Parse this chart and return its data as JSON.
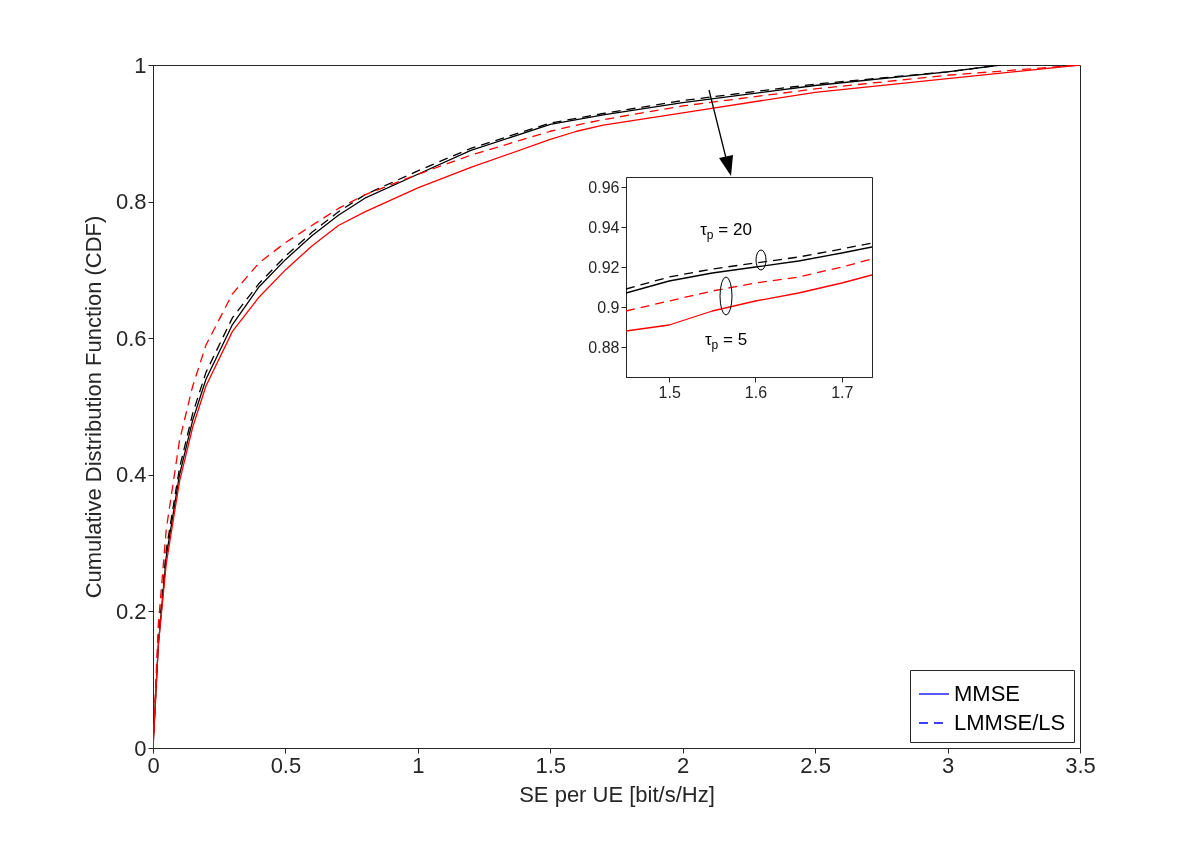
{
  "chart_data": [
    {
      "type": "line",
      "xlabel": "SE per UE [bit/s/Hz]",
      "ylabel": "Cumulative Distribution Function (CDF)",
      "xlim": [
        0,
        3.5
      ],
      "ylim": [
        0,
        1
      ],
      "xticks": [
        0,
        0.5,
        1,
        1.5,
        2,
        2.5,
        3,
        3.5
      ],
      "yticks": [
        0,
        0.2,
        0.4,
        0.6,
        0.8,
        1
      ],
      "legend": "bottom right",
      "series": [
        {
          "color": "#000000",
          "line_style": "solid",
          "x": [
            0,
            0.02,
            0.05,
            0.1,
            0.15,
            0.2,
            0.3,
            0.4,
            0.5,
            0.6,
            0.7,
            0.8,
            1.0,
            1.2,
            1.5,
            1.6,
            1.7,
            2.0,
            2.5,
            3.0,
            3.2
          ],
          "values": [
            0,
            0.15,
            0.28,
            0.4,
            0.48,
            0.54,
            0.62,
            0.675,
            0.715,
            0.75,
            0.78,
            0.805,
            0.84,
            0.875,
            0.913,
            0.92,
            0.927,
            0.945,
            0.97,
            0.99,
            1.0
          ]
        },
        {
          "color": "#000000",
          "line_style": "dashed",
          "x": [
            0,
            0.02,
            0.05,
            0.1,
            0.15,
            0.2,
            0.3,
            0.4,
            0.5,
            0.6,
            0.7,
            0.8,
            1.0,
            1.2,
            1.5,
            1.6,
            1.7,
            2.0,
            2.5,
            3.0,
            3.2
          ],
          "values": [
            0,
            0.16,
            0.29,
            0.41,
            0.49,
            0.55,
            0.63,
            0.68,
            0.72,
            0.755,
            0.785,
            0.81,
            0.845,
            0.878,
            0.915,
            0.922,
            0.929,
            0.948,
            0.972,
            0.99,
            1.0
          ]
        },
        {
          "color": "#ff0000",
          "line_style": "dashed",
          "x": [
            0,
            0.02,
            0.05,
            0.1,
            0.15,
            0.2,
            0.3,
            0.4,
            0.5,
            0.6,
            0.7,
            0.8,
            1.0,
            1.2,
            1.5,
            1.6,
            1.7,
            2.0,
            2.5,
            3.0,
            3.5
          ],
          "values": [
            0,
            0.18,
            0.32,
            0.45,
            0.53,
            0.59,
            0.665,
            0.71,
            0.74,
            0.765,
            0.79,
            0.81,
            0.84,
            0.868,
            0.903,
            0.912,
            0.92,
            0.94,
            0.965,
            0.985,
            1.0
          ]
        },
        {
          "color": "#ff0000",
          "line_style": "solid",
          "x": [
            0,
            0.02,
            0.05,
            0.1,
            0.15,
            0.2,
            0.3,
            0.4,
            0.5,
            0.6,
            0.7,
            0.8,
            1.0,
            1.2,
            1.5,
            1.6,
            1.7,
            2.0,
            2.5,
            3.0,
            3.5
          ],
          "values": [
            0,
            0.15,
            0.27,
            0.39,
            0.47,
            0.53,
            0.61,
            0.66,
            0.7,
            0.735,
            0.765,
            0.785,
            0.82,
            0.85,
            0.891,
            0.903,
            0.912,
            0.93,
            0.96,
            0.98,
            1.0
          ]
        },
        {
          "name": "MMSE",
          "color": "#0000ff",
          "line_style": "solid"
        },
        {
          "name": "LMMSE/LS",
          "color": "#0000ff",
          "line_style": "dashed"
        }
      ]
    },
    {
      "type": "line",
      "xlim": [
        1.45,
        1.735
      ],
      "ylim": [
        0.865,
        0.965
      ],
      "xticks": [
        1.5,
        1.6,
        1.7
      ],
      "yticks": [
        0.88,
        0.9,
        0.92,
        0.94,
        0.96
      ],
      "annotations": [
        "τ$_{p}$ = 20",
        "τ$_{p}$ = 5"
      ],
      "series": [
        {
          "color": "#000000",
          "line_style": "solid",
          "x": [
            1.45,
            1.5,
            1.55,
            1.6,
            1.65,
            1.7,
            1.735
          ],
          "values": [
            0.907,
            0.913,
            0.917,
            0.92,
            0.923,
            0.927,
            0.93
          ]
        },
        {
          "color": "#000000",
          "line_style": "dashed",
          "x": [
            1.45,
            1.5,
            1.55,
            1.6,
            1.65,
            1.7,
            1.735
          ],
          "values": [
            0.909,
            0.915,
            0.919,
            0.922,
            0.925,
            0.929,
            0.932
          ]
        },
        {
          "color": "#ff0000",
          "line_style": "dashed",
          "x": [
            1.45,
            1.5,
            1.55,
            1.6,
            1.65,
            1.7,
            1.735
          ],
          "values": [
            0.898,
            0.903,
            0.908,
            0.912,
            0.915,
            0.92,
            0.924
          ]
        },
        {
          "color": "#ff0000",
          "line_style": "solid",
          "x": [
            1.45,
            1.5,
            1.55,
            1.6,
            1.65,
            1.7,
            1.735
          ],
          "values": [
            0.888,
            0.891,
            0.898,
            0.903,
            0.907,
            0.912,
            0.916
          ]
        }
      ]
    }
  ]
}
